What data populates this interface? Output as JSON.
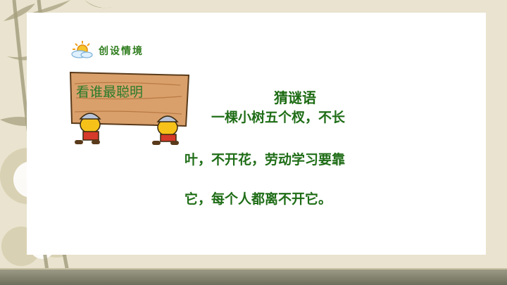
{
  "slide": {
    "section_title": "创设情境",
    "board_label": "看谁最聪明",
    "riddle_title": "猜谜语",
    "riddle_lines": [
      "一棵小树五个杈，不长",
      "叶，不开花，劳动学习要靠",
      "它，每个人都离不开它。"
    ]
  },
  "colors": {
    "background": "#e9e3cf",
    "card": "#ffffff",
    "text_green": "#1f6d17"
  }
}
